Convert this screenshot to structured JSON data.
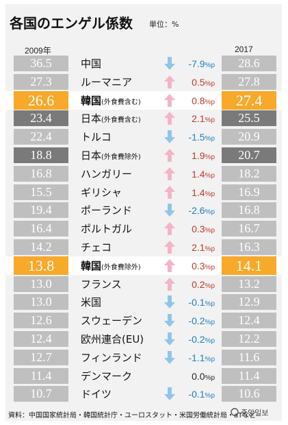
{
  "header": {
    "title": "各国のエンゲル係数",
    "unit": "単位：%",
    "year_left": "2009年",
    "year_right": "2017"
  },
  "chart_data": {
    "type": "table",
    "title": "各国のエンゲル係数",
    "unit": "単位：%",
    "columns": [
      "2009年",
      "国",
      "変化",
      "2017"
    ],
    "rows": [
      {
        "country": "中国",
        "suffix": "",
        "v2009": "36.5",
        "change": "-7.9",
        "dir": "down",
        "v2017": "28.6",
        "style": "gray"
      },
      {
        "country": "ルーマニア",
        "suffix": "",
        "v2009": "27.3",
        "change": "0.5",
        "dir": "up",
        "v2017": "27.8",
        "style": "gray"
      },
      {
        "country": "韓国",
        "suffix": "(外食費含む)",
        "v2009": "26.6",
        "change": "0.8",
        "dir": "up",
        "v2017": "27.4",
        "style": "orange"
      },
      {
        "country": "日本",
        "suffix": "(外食費含む)",
        "v2009": "23.4",
        "change": "2.1",
        "dir": "up",
        "v2017": "25.5",
        "style": "dark"
      },
      {
        "country": "トルコ",
        "suffix": "",
        "v2009": "22.4",
        "change": "-1.5",
        "dir": "down",
        "v2017": "20.9",
        "style": "gray"
      },
      {
        "country": "日本",
        "suffix": "(外食費除外)",
        "v2009": "18.8",
        "change": "1.9",
        "dir": "up",
        "v2017": "20.7",
        "style": "dark"
      },
      {
        "country": "ハンガリー",
        "suffix": "",
        "v2009": "16.8",
        "change": "1.4",
        "dir": "up",
        "v2017": "18.2",
        "style": "gray"
      },
      {
        "country": "ギリシャ",
        "suffix": "",
        "v2009": "15.5",
        "change": "1.4",
        "dir": "up",
        "v2017": "16.9",
        "style": "gray"
      },
      {
        "country": "ポーランド",
        "suffix": "",
        "v2009": "19.4",
        "change": "-2.6",
        "dir": "down",
        "v2017": "16.8",
        "style": "gray"
      },
      {
        "country": "ポルトガル",
        "suffix": "",
        "v2009": "16.4",
        "change": "0.3",
        "dir": "up",
        "v2017": "16.7",
        "style": "gray"
      },
      {
        "country": "チェコ",
        "suffix": "",
        "v2009": "14.2",
        "change": "2.1",
        "dir": "up",
        "v2017": "16.3",
        "style": "gray"
      },
      {
        "country": "韓国",
        "suffix": "(外食費除外)",
        "v2009": "13.8",
        "change": "0.3",
        "dir": "up",
        "v2017": "14.1",
        "style": "orange"
      },
      {
        "country": "フランス",
        "suffix": "",
        "v2009": "13.0",
        "change": "0.2",
        "dir": "up",
        "v2017": "13.2",
        "style": "gray"
      },
      {
        "country": "米国",
        "suffix": "",
        "v2009": "13.0",
        "change": "-0.1",
        "dir": "down",
        "v2017": "12.9",
        "style": "gray"
      },
      {
        "country": "スウェーデン",
        "suffix": "",
        "v2009": "12.6",
        "change": "-0.2",
        "dir": "down",
        "v2017": "12.4",
        "style": "gray"
      },
      {
        "country": "欧州連合(EU)",
        "suffix": "",
        "v2009": "12.4",
        "change": "-0.2",
        "dir": "down",
        "v2017": "12.2",
        "style": "gray"
      },
      {
        "country": "フィンランド",
        "suffix": "",
        "v2009": "12.7",
        "change": "-1.1",
        "dir": "down",
        "v2017": "11.6",
        "style": "gray"
      },
      {
        "country": "デンマーク",
        "suffix": "",
        "v2009": "11.4",
        "change": "0.0",
        "dir": "flat",
        "v2017": "11.4",
        "style": "gray"
      },
      {
        "country": "ドイツ",
        "suffix": "",
        "v2009": "10.7",
        "change": "-0.1",
        "dir": "down",
        "v2017": "10.6",
        "style": "gray"
      }
    ],
    "change_unit": "%p"
  },
  "colors": {
    "gray": "#bfbfbf",
    "dark": "#7a7a7a",
    "orange": "#f7a92a",
    "up_arrow": "#f5b3c6",
    "down_arrow": "#8fc6e8",
    "up_text": "#c0392b",
    "down_text": "#1f7fbf"
  },
  "footer": {
    "source": "資料：中国国家統計局・韓国統計庁・ユーロスタット・米国労働統計局・aTなど",
    "logo": "중앙일보"
  }
}
